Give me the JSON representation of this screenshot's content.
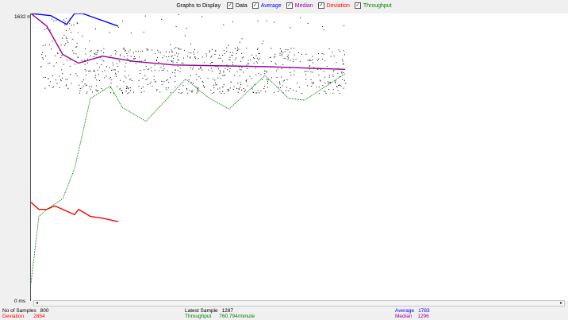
{
  "legend": {
    "title": "Graphs to Display",
    "items": [
      {
        "label": "Data",
        "checked": true,
        "color": "#000000"
      },
      {
        "label": "Average",
        "checked": true,
        "color": "#0000ff"
      },
      {
        "label": "Median",
        "checked": true,
        "color": "#990099"
      },
      {
        "label": "Deviation",
        "checked": true,
        "color": "#ff0000"
      },
      {
        "label": "Throughput",
        "checked": true,
        "color": "#008000"
      }
    ]
  },
  "axis": {
    "y_max_label": "1632  ms",
    "y_min_label": "0  ms"
  },
  "scrollbar": {
    "left_arrow": "◂",
    "right_arrow": "▸"
  },
  "status": {
    "samples_label": "No of Samples",
    "samples_value": "800",
    "deviation_label": "Deviation",
    "deviation_value": "2854",
    "latest_label": "Latest Sample",
    "latest_value": "1287",
    "throughput_label": "Throughput",
    "throughput_value": "760.794/minute",
    "average_label": "Average",
    "average_value": "1783",
    "median_label": "Median",
    "median_value": "1296"
  },
  "chart_data": {
    "type": "line",
    "ylim": [
      0,
      1632
    ],
    "ylabel": "ms",
    "series": [
      {
        "name": "Average",
        "color": "#0000ff",
        "x": [
          0,
          25,
          45,
          55,
          65,
          85,
          110
        ],
        "y": [
          1632,
          1620,
          1570,
          1632,
          1632,
          1600,
          1560
        ]
      },
      {
        "name": "Median",
        "color": "#990099",
        "x": [
          0,
          20,
          40,
          60,
          90,
          130,
          180,
          240,
          300,
          360,
          396
        ],
        "y": [
          1632,
          1560,
          1400,
          1350,
          1390,
          1360,
          1340,
          1335,
          1330,
          1320,
          1315
        ]
      },
      {
        "name": "Deviation",
        "color": "#ff0000",
        "x": [
          0,
          10,
          20,
          30,
          45,
          55,
          60,
          75,
          90,
          110
        ],
        "y": [
          560,
          520,
          520,
          540,
          510,
          490,
          520,
          480,
          470,
          450
        ]
      },
      {
        "name": "Throughput",
        "color": "#008000",
        "x": [
          0,
          10,
          20,
          40,
          55,
          75,
          100,
          115,
          145,
          195,
          225,
          250,
          295,
          325,
          345,
          396
        ],
        "y": [
          100,
          480,
          520,
          580,
          750,
          1150,
          1220,
          1100,
          1020,
          1260,
          1150,
          1090,
          1280,
          1150,
          1140,
          1290
        ]
      }
    ],
    "data_points": {
      "name": "Data",
      "color": "#000000",
      "count": 800
    }
  }
}
